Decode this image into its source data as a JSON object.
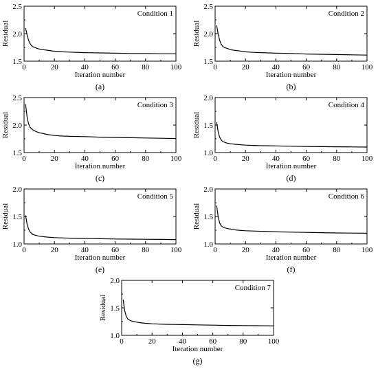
{
  "chart_data": [
    {
      "type": "line",
      "panel_label": "(a)",
      "annotation": "Condition 1",
      "xlabel": "Iteration number",
      "ylabel": "Residual",
      "xlim": [
        0,
        100
      ],
      "ylim": [
        1.5,
        2.5
      ],
      "xticks": [
        "0",
        "20",
        "40",
        "60",
        "80",
        "100"
      ],
      "yticks": [
        "1.5",
        "2.0",
        "2.5"
      ],
      "x": [
        1,
        2,
        3,
        4,
        5,
        6,
        8,
        10,
        12,
        15,
        20,
        25,
        30,
        40,
        50,
        60,
        70,
        80,
        90,
        100
      ],
      "y": [
        2.1,
        1.98,
        1.88,
        1.82,
        1.78,
        1.76,
        1.74,
        1.72,
        1.71,
        1.7,
        1.68,
        1.67,
        1.665,
        1.655,
        1.65,
        1.645,
        1.64,
        1.64,
        1.635,
        1.635
      ]
    },
    {
      "type": "line",
      "panel_label": "(b)",
      "annotation": "Condition 2",
      "xlabel": "Iteration number",
      "ylabel": "Residual",
      "xlim": [
        0,
        100
      ],
      "ylim": [
        1.5,
        2.5
      ],
      "xticks": [
        "0",
        "20",
        "40",
        "60",
        "80",
        "100"
      ],
      "yticks": [
        "1.5",
        "2.0",
        "2.5"
      ],
      "x": [
        1,
        2,
        3,
        4,
        5,
        6,
        8,
        10,
        12,
        15,
        20,
        25,
        30,
        40,
        50,
        60,
        70,
        80,
        90,
        100
      ],
      "y": [
        2.15,
        2.0,
        1.88,
        1.81,
        1.77,
        1.75,
        1.73,
        1.71,
        1.7,
        1.69,
        1.67,
        1.66,
        1.655,
        1.645,
        1.64,
        1.63,
        1.625,
        1.62,
        1.615,
        1.61
      ]
    },
    {
      "type": "line",
      "panel_label": "(c)",
      "annotation": "Condition 3",
      "xlabel": "Iteration number",
      "ylabel": "Residual",
      "xlim": [
        0,
        100
      ],
      "ylim": [
        1.5,
        2.5
      ],
      "xticks": [
        "0",
        "20",
        "40",
        "60",
        "80",
        "100"
      ],
      "yticks": [
        "1.5",
        "2.0",
        "2.5"
      ],
      "x": [
        1,
        2,
        3,
        4,
        5,
        6,
        8,
        10,
        12,
        15,
        20,
        25,
        30,
        40,
        50,
        60,
        70,
        80,
        90,
        100
      ],
      "y": [
        2.38,
        2.15,
        2.02,
        1.96,
        1.93,
        1.91,
        1.88,
        1.86,
        1.85,
        1.83,
        1.81,
        1.8,
        1.795,
        1.79,
        1.78,
        1.775,
        1.77,
        1.765,
        1.76,
        1.755
      ]
    },
    {
      "type": "line",
      "panel_label": "(d)",
      "annotation": "Condition 4",
      "xlabel": "Iteration number",
      "ylabel": "Residual",
      "xlim": [
        0,
        100
      ],
      "ylim": [
        1.0,
        2.0
      ],
      "xticks": [
        "0",
        "20",
        "40",
        "60",
        "80",
        "100"
      ],
      "yticks": [
        "1.0",
        "1.5",
        "2.0"
      ],
      "x": [
        1,
        2,
        3,
        4,
        5,
        6,
        8,
        10,
        12,
        15,
        20,
        25,
        30,
        40,
        50,
        60,
        70,
        80,
        90,
        100
      ],
      "y": [
        1.55,
        1.38,
        1.28,
        1.23,
        1.2,
        1.19,
        1.17,
        1.16,
        1.155,
        1.145,
        1.135,
        1.13,
        1.125,
        1.12,
        1.115,
        1.11,
        1.108,
        1.105,
        1.102,
        1.1
      ]
    },
    {
      "type": "line",
      "panel_label": "(e)",
      "annotation": "Condition 5",
      "xlabel": "Iteration number",
      "ylabel": "Residual",
      "xlim": [
        0,
        100
      ],
      "ylim": [
        1.0,
        2.0
      ],
      "xticks": [
        "0",
        "20",
        "40",
        "60",
        "80",
        "100"
      ],
      "yticks": [
        "1.0",
        "1.5",
        "2.0"
      ],
      "x": [
        1,
        2,
        3,
        4,
        5,
        6,
        8,
        10,
        12,
        15,
        20,
        25,
        30,
        40,
        50,
        60,
        70,
        80,
        90,
        100
      ],
      "y": [
        1.52,
        1.36,
        1.27,
        1.22,
        1.19,
        1.17,
        1.155,
        1.14,
        1.135,
        1.125,
        1.115,
        1.11,
        1.105,
        1.1,
        1.095,
        1.09,
        1.088,
        1.085,
        1.083,
        1.08
      ]
    },
    {
      "type": "line",
      "panel_label": "(f)",
      "annotation": "Condition 6",
      "xlabel": "Iteration number",
      "ylabel": "Residual",
      "xlim": [
        0,
        100
      ],
      "ylim": [
        1.0,
        2.0
      ],
      "xticks": [
        "0",
        "20",
        "40",
        "60",
        "80",
        "100"
      ],
      "yticks": [
        "1.0",
        "1.5",
        "2.0"
      ],
      "x": [
        1,
        2,
        3,
        4,
        5,
        6,
        8,
        10,
        12,
        15,
        20,
        25,
        30,
        40,
        50,
        60,
        70,
        80,
        90,
        100
      ],
      "y": [
        1.7,
        1.5,
        1.38,
        1.33,
        1.31,
        1.295,
        1.28,
        1.27,
        1.26,
        1.25,
        1.24,
        1.235,
        1.23,
        1.22,
        1.215,
        1.21,
        1.205,
        1.2,
        1.198,
        1.195
      ]
    },
    {
      "type": "line",
      "panel_label": "(g)",
      "annotation": "Condition 7",
      "xlabel": "Iteration number",
      "ylabel": "Residual",
      "xlim": [
        0,
        100
      ],
      "ylim": [
        1.0,
        2.0
      ],
      "xticks": [
        "0",
        "20",
        "40",
        "60",
        "80",
        "100"
      ],
      "yticks": [
        "1.0",
        "1.5",
        "2.0"
      ],
      "x": [
        1,
        2,
        3,
        4,
        5,
        6,
        8,
        10,
        12,
        15,
        20,
        25,
        30,
        40,
        50,
        60,
        70,
        80,
        90,
        100
      ],
      "y": [
        1.65,
        1.45,
        1.35,
        1.3,
        1.28,
        1.265,
        1.25,
        1.24,
        1.23,
        1.22,
        1.21,
        1.205,
        1.2,
        1.195,
        1.19,
        1.185,
        1.18,
        1.178,
        1.175,
        1.172
      ]
    }
  ]
}
